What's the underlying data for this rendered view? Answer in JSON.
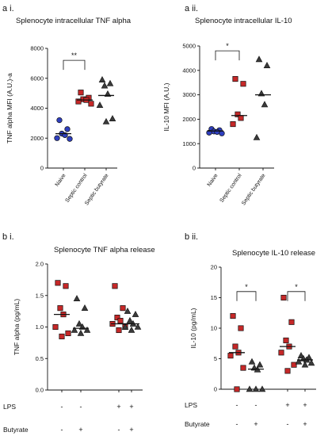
{
  "panels": [
    {
      "label": "a i.",
      "title": "Splenocyte intracellular TNF alpha",
      "ylabel": "TNF alpha MFI (A.U.)-a",
      "ylim": [
        0,
        8000
      ],
      "yticks": [
        "0",
        "2000",
        "4000",
        "6000",
        "8000"
      ],
      "categories": [
        "Naive",
        "Septic control",
        "Septic butyrate"
      ],
      "markers": [
        "circle",
        "square",
        "triangle"
      ],
      "colors": [
        "#2f3fbf",
        "#c62828",
        "#3a3a3a"
      ],
      "groups": [
        [
          3200,
          2600,
          2300,
          2200,
          2000,
          1950
        ],
        [
          5050,
          4700,
          4600,
          4550,
          4450,
          4300
        ],
        [
          5900,
          5650,
          5500,
          4950,
          4200,
          3300,
          3100
        ]
      ],
      "medians": [
        2300,
        4550,
        4850
      ],
      "sig": {
        "from": 0,
        "to": 1,
        "label": "**",
        "y": 7200
      }
    },
    {
      "label": "a ii.",
      "title": "Splenocyte intracellular IL-10",
      "ylabel": "IL-10 MFI (A.U.)",
      "ylim": [
        0,
        5000
      ],
      "yticks": [
        "0",
        "1000",
        "2000",
        "3000",
        "4000",
        "5000"
      ],
      "categories": [
        "Naive",
        "Septic control",
        "Septic butyrate"
      ],
      "markers": [
        "circle",
        "square",
        "triangle"
      ],
      "colors": [
        "#2f3fbf",
        "#c62828",
        "#3a3a3a"
      ],
      "groups": [
        [
          1600,
          1550,
          1500,
          1480,
          1450,
          1420
        ],
        [
          3650,
          3450,
          2200,
          2050,
          1800
        ],
        [
          4450,
          4200,
          3050,
          2600,
          1250
        ]
      ],
      "medians": [
        1520,
        2150,
        3000
      ],
      "sig": {
        "from": 0,
        "to": 1,
        "label": "*",
        "y": 4800
      }
    },
    {
      "label": "b i.",
      "title": "Splenocyte TNF alpha release",
      "ylabel": "TNF alpha (pg/mL)",
      "ylim": [
        0,
        2.0
      ],
      "yticks": [
        "0.0",
        "0.5",
        "1.0",
        "1.5",
        "2.0"
      ],
      "markers": [
        "square",
        "triangle",
        "square",
        "triangle"
      ],
      "colors": [
        "#c62828",
        "#3a3a3a",
        "#c62828",
        "#3a3a3a"
      ],
      "groups": [
        [
          1.7,
          1.65,
          1.3,
          1.2,
          1.0,
          0.9,
          0.85
        ],
        [
          1.45,
          1.3,
          1.05,
          1.0,
          0.95,
          0.95,
          0.9
        ],
        [
          1.65,
          1.3,
          1.15,
          1.1,
          1.05,
          1.0,
          0.95
        ],
        [
          1.25,
          1.2,
          1.1,
          1.05,
          1.0,
          1.0,
          0.95
        ]
      ],
      "medians": [
        1.2,
        0.98,
        1.05,
        1.05
      ],
      "sig": null
    },
    {
      "label": "b ii.",
      "title": "Splenocyte IL-10 release",
      "ylabel": "IL-10 (pg/mL)",
      "ylim": [
        0,
        20
      ],
      "yticks": [
        "0",
        "5",
        "10",
        "15",
        "20"
      ],
      "markers": [
        "square",
        "triangle",
        "square",
        "triangle"
      ],
      "colors": [
        "#c62828",
        "#3a3a3a",
        "#c62828",
        "#3a3a3a"
      ],
      "groups": [
        [
          12,
          10,
          7,
          6,
          5.5,
          3.5,
          0
        ],
        [
          4.5,
          4,
          3.5,
          3.2,
          0,
          0,
          0
        ],
        [
          15,
          11,
          8,
          7,
          6,
          4,
          3
        ],
        [
          5.5,
          5.2,
          5,
          4.8,
          4.5,
          4.3,
          4
        ]
      ],
      "medians": [
        6,
        3.3,
        7,
        4.8
      ],
      "sig": [
        {
          "from": 0,
          "to": 1,
          "label": "*",
          "y": 16
        },
        {
          "from": 2,
          "to": 3,
          "label": "*",
          "y": 16
        }
      ]
    }
  ],
  "conditions": {
    "lps_label": "LPS",
    "butyrate_label": "Butyrate",
    "lps": [
      "-",
      "-",
      "+",
      "+"
    ],
    "butyrate": [
      "-",
      "+",
      "-",
      "+"
    ]
  }
}
